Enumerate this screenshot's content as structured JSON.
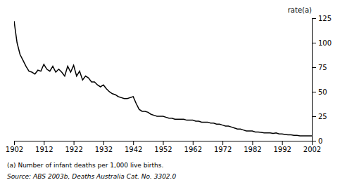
{
  "chart_data": {
    "type": "line",
    "ylabel": "rate(a)",
    "annotations": [
      "(a) Number of infant deaths per 1,000 live births.",
      "Source: ABS 2003b, Deaths Australia Cat. No. 3302.0"
    ],
    "color": "#000000",
    "grid": false,
    "xlim": [
      1902,
      2002
    ],
    "ylim": [
      0,
      125
    ],
    "xticks": [
      1902,
      1912,
      1922,
      1932,
      1942,
      1952,
      1962,
      1972,
      1982,
      1992,
      2002
    ],
    "yticks": [
      0,
      25,
      50,
      75,
      100,
      125
    ],
    "x": [
      1902,
      1903,
      1904,
      1905,
      1906,
      1907,
      1908,
      1909,
      1910,
      1911,
      1912,
      1913,
      1914,
      1915,
      1916,
      1917,
      1918,
      1919,
      1920,
      1921,
      1922,
      1923,
      1924,
      1925,
      1926,
      1927,
      1928,
      1929,
      1930,
      1931,
      1932,
      1933,
      1934,
      1935,
      1936,
      1937,
      1938,
      1939,
      1940,
      1941,
      1942,
      1943,
      1944,
      1945,
      1946,
      1947,
      1948,
      1949,
      1950,
      1951,
      1952,
      1953,
      1954,
      1955,
      1956,
      1957,
      1958,
      1959,
      1960,
      1961,
      1962,
      1963,
      1964,
      1965,
      1966,
      1967,
      1968,
      1969,
      1970,
      1971,
      1972,
      1973,
      1974,
      1975,
      1976,
      1977,
      1978,
      1979,
      1980,
      1981,
      1982,
      1983,
      1984,
      1985,
      1986,
      1987,
      1988,
      1989,
      1990,
      1991,
      1992,
      1993,
      1994,
      1995,
      1996,
      1997,
      1998,
      1999,
      2000,
      2001,
      2002
    ],
    "values": [
      122,
      100,
      88,
      82,
      76,
      71,
      70,
      68,
      72,
      71,
      78,
      73,
      71,
      76,
      70,
      73,
      70,
      66,
      76,
      70,
      77,
      66,
      71,
      62,
      66,
      64,
      60,
      60,
      57,
      55,
      57,
      53,
      50,
      48,
      47,
      45,
      44,
      43,
      43,
      44,
      45,
      38,
      32,
      30,
      30,
      29,
      27,
      26,
      25,
      25,
      25,
      24,
      23,
      23,
      22,
      22,
      22,
      22,
      21,
      21,
      21,
      20,
      20,
      19,
      19,
      19,
      18,
      18,
      17,
      17,
      16,
      15,
      15,
      14,
      13,
      12,
      12,
      11,
      10,
      10,
      10,
      9,
      9,
      8.5,
      8,
      8,
      8,
      7.5,
      8,
      7,
      7,
      6.5,
      6,
      6,
      5.5,
      5.5,
      5,
      5,
      5,
      5,
      5
    ]
  }
}
